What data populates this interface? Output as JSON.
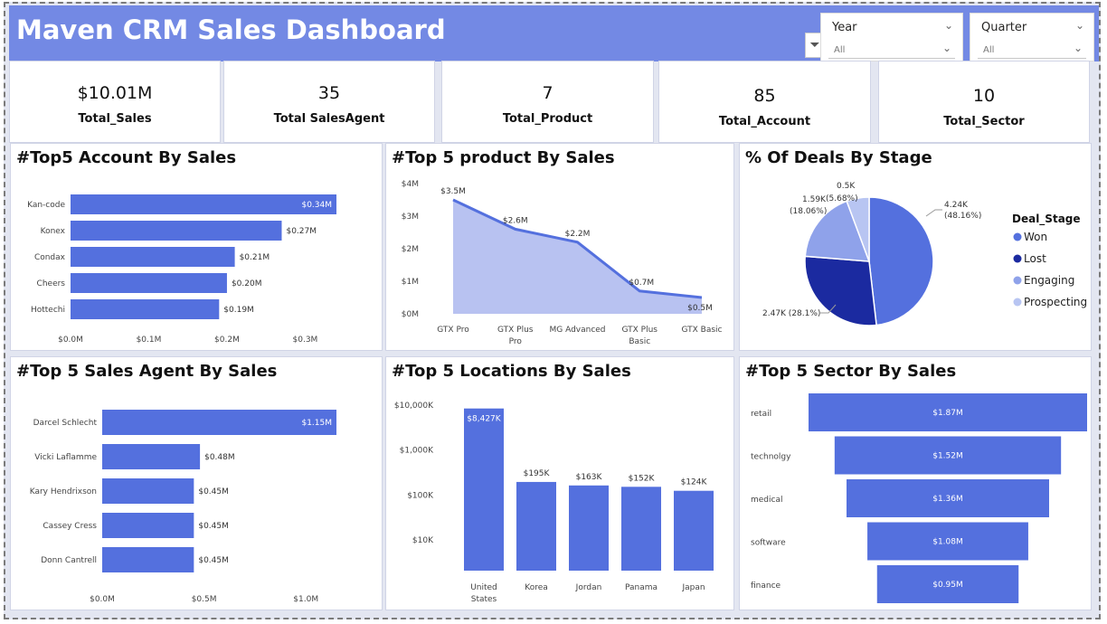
{
  "header": {
    "title": "Maven CRM Sales Dashboard",
    "bg_color": "#7389e4",
    "filter_icon": "filter-icon",
    "slicers": [
      {
        "label": "Year",
        "value": "All"
      },
      {
        "label": "Quarter",
        "value": "All"
      }
    ]
  },
  "kpis": [
    {
      "value": "$10.01M",
      "label": "Total_Sales"
    },
    {
      "value": "35",
      "label": "Total SalesAgent"
    },
    {
      "value": "7",
      "label": "Total_Product"
    },
    {
      "value": "85",
      "label": "Total_Account"
    },
    {
      "value": "10",
      "label": "Total_Sector"
    }
  ],
  "chart_data": [
    {
      "id": "accounts",
      "type": "bar",
      "orientation": "horizontal",
      "title": "#Top5 Account By Sales",
      "categories": [
        "Kan-code",
        "Konex",
        "Condax",
        "Cheers",
        "Hottechi"
      ],
      "values": [
        0.34,
        0.27,
        0.21,
        0.2,
        0.19
      ],
      "data_labels": [
        "$0.34M",
        "$0.27M",
        "$0.21M",
        "$0.20M",
        "$0.19M"
      ],
      "xticks": [
        "$0.0M",
        "$0.1M",
        "$0.2M",
        "$0.3M"
      ],
      "xlim": [
        0,
        0.34
      ],
      "color": "#5470de"
    },
    {
      "id": "products",
      "type": "area",
      "title": "#Top 5 product By Sales",
      "categories": [
        "GTX Pro",
        "GTX Plus Pro",
        "MG Advanced",
        "GTX Plus Basic",
        "GTX Basic"
      ],
      "values": [
        3.5,
        2.6,
        2.2,
        0.7,
        0.5
      ],
      "data_labels": [
        "$3.5M",
        "$2.6M",
        "$2.2M",
        "$0.7M",
        "$0.5M"
      ],
      "yticks": [
        "$4M",
        "$3M",
        "$2M",
        "$1M",
        "$0M"
      ],
      "ylim": [
        0,
        4
      ],
      "line_color": "#5470de",
      "fill_color": "#b8c2f1"
    },
    {
      "id": "deal_stage",
      "type": "pie",
      "title": "% Of Deals By Stage",
      "legend_title": "Deal_Stage",
      "legend_position": "right",
      "slices": [
        {
          "name": "Won",
          "value": 4.24,
          "label": "4.24K",
          "pct": "(48.16%)",
          "color": "#5470de"
        },
        {
          "name": "Lost",
          "value": 2.47,
          "label": "2.47K (28.1%)",
          "pct": "",
          "color": "#1b2aa0"
        },
        {
          "name": "Engaging",
          "value": 1.59,
          "label": "1.59K",
          "pct": "(18.06%)",
          "color": "#8fa2ea"
        },
        {
          "name": "Prospecting",
          "value": 0.5,
          "label": "0.5K",
          "pct": "(5.68%)",
          "color": "#b8c5f2"
        }
      ]
    },
    {
      "id": "agents",
      "type": "bar",
      "orientation": "horizontal",
      "title": "#Top 5 Sales Agent By Sales",
      "categories": [
        "Darcel Schlecht",
        "Vicki Laflamme",
        "Kary Hendrixson",
        "Cassey Cress",
        "Donn Cantrell"
      ],
      "values": [
        1.15,
        0.48,
        0.45,
        0.45,
        0.45
      ],
      "data_labels": [
        "$1.15M",
        "$0.48M",
        "$0.45M",
        "$0.45M",
        "$0.45M"
      ],
      "xticks": [
        "$0.0M",
        "$0.5M",
        "$1.0M"
      ],
      "xlim": [
        0,
        1.15
      ],
      "color": "#5470de"
    },
    {
      "id": "locations",
      "type": "bar",
      "orientation": "vertical",
      "scale": "log",
      "title": "#Top 5 Locations By Sales",
      "categories": [
        "United States",
        "Korea",
        "Jordan",
        "Panama",
        "Japan"
      ],
      "values": [
        8427,
        195,
        163,
        152,
        124
      ],
      "data_labels": [
        "$8,427K",
        "$195K",
        "$163K",
        "$152K",
        "$124K"
      ],
      "yticks": [
        "$10,000K",
        "$1,000K",
        "$100K",
        "$10K"
      ],
      "ylim": [
        10,
        10000
      ],
      "color": "#5470de"
    },
    {
      "id": "sectors",
      "type": "bar",
      "orientation": "funnel",
      "title": "#Top 5 Sector By Sales",
      "categories": [
        "retail",
        "technolgy",
        "medical",
        "software",
        "finance"
      ],
      "values": [
        1.87,
        1.52,
        1.36,
        1.08,
        0.95
      ],
      "data_labels": [
        "$1.87M",
        "$1.52M",
        "$1.36M",
        "$1.08M",
        "$0.95M"
      ],
      "color": "#5470de"
    }
  ]
}
